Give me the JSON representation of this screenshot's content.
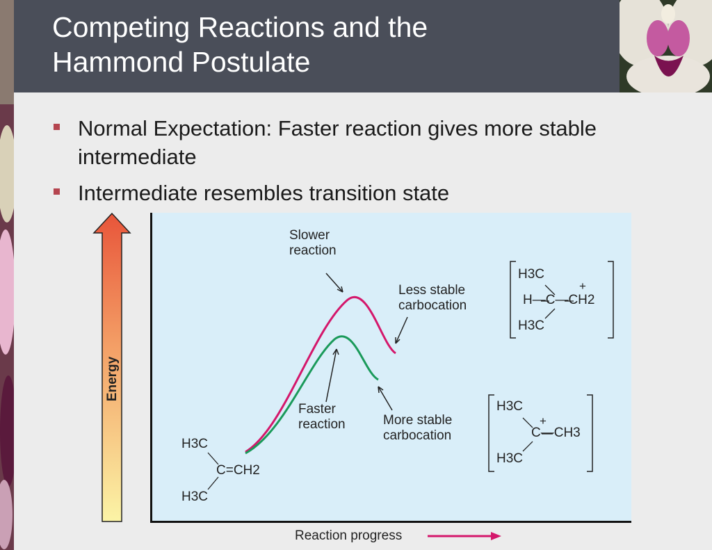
{
  "slide": {
    "title_line1": "Competing Reactions and the",
    "title_line2": "Hammond Postulate",
    "bullets": [
      "Normal Expectation: Faster reaction gives more stable intermediate",
      "Intermediate resembles transition state"
    ]
  },
  "diagram": {
    "y_axis_label": "Energy",
    "x_axis_label": "Reaction progress",
    "slower_reaction": [
      "Slower",
      "reaction"
    ],
    "faster_reaction": [
      "Faster",
      "reaction"
    ],
    "less_stable": [
      "Less stable",
      "carbocation"
    ],
    "more_stable": [
      "More stable",
      "carbocation"
    ],
    "reactant_formula": [
      "H3C",
      "C=CH2",
      "H3C"
    ],
    "less_stable_formula": [
      "H3C",
      "H—C—CH2",
      "H3C"
    ],
    "more_stable_formula": [
      "H3C",
      "C—CH3",
      "H3C"
    ],
    "colors": {
      "slower_curve": "#d4176b",
      "faster_curve": "#1a9a5a",
      "title_bar": "#4a4e59",
      "bullet": "#b5454f",
      "plot_bg": "#d9eef9"
    }
  }
}
